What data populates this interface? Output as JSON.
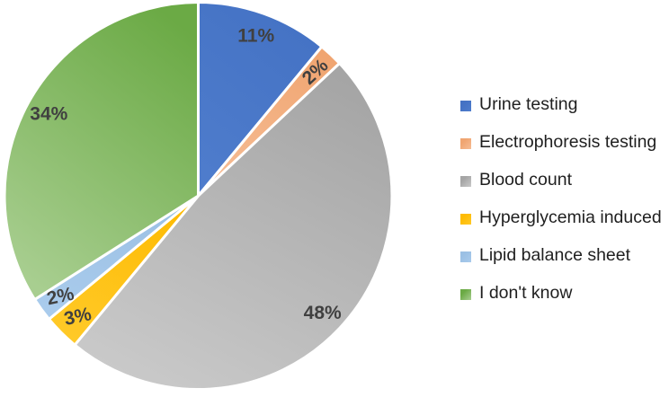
{
  "chart_data": {
    "type": "pie",
    "title": "",
    "start_angle_deg": 0,
    "direction": "clockwise",
    "legend_position": "right",
    "background_color": "#FFFFFF",
    "data_label_color": "#404040",
    "legend_text_color": "#1F1F1F",
    "slices": [
      {
        "label": "Urine testing",
        "value": 11,
        "display": "11%",
        "color": "#4472C4",
        "color2": "#4E7CCC",
        "label_rotation": 0
      },
      {
        "label": "Electrophoresis testing",
        "value": 2,
        "display": "2%",
        "color": "#F0A571",
        "color2": "#F6BD95",
        "label_rotation": -43
      },
      {
        "label": "Blood count",
        "value": 48,
        "display": "48%",
        "color": "#A5A5A5",
        "color2": "#C9C9C9",
        "label_rotation": 0
      },
      {
        "label": "Hyperglycemia induced",
        "value": 3,
        "display": "3%",
        "color": "#FEBB03",
        "color2": "#FFC927",
        "label_rotation": -12
      },
      {
        "label": "Lipid balance sheet",
        "value": 2,
        "display": "2%",
        "color": "#9BC0E4",
        "color2": "#A9CBEC",
        "label_rotation": -12
      },
      {
        "label": "I don't know",
        "value": 34,
        "display": "34%",
        "color": "#6BAA45",
        "color2": "#A8CE90",
        "label_rotation": 0
      }
    ]
  }
}
